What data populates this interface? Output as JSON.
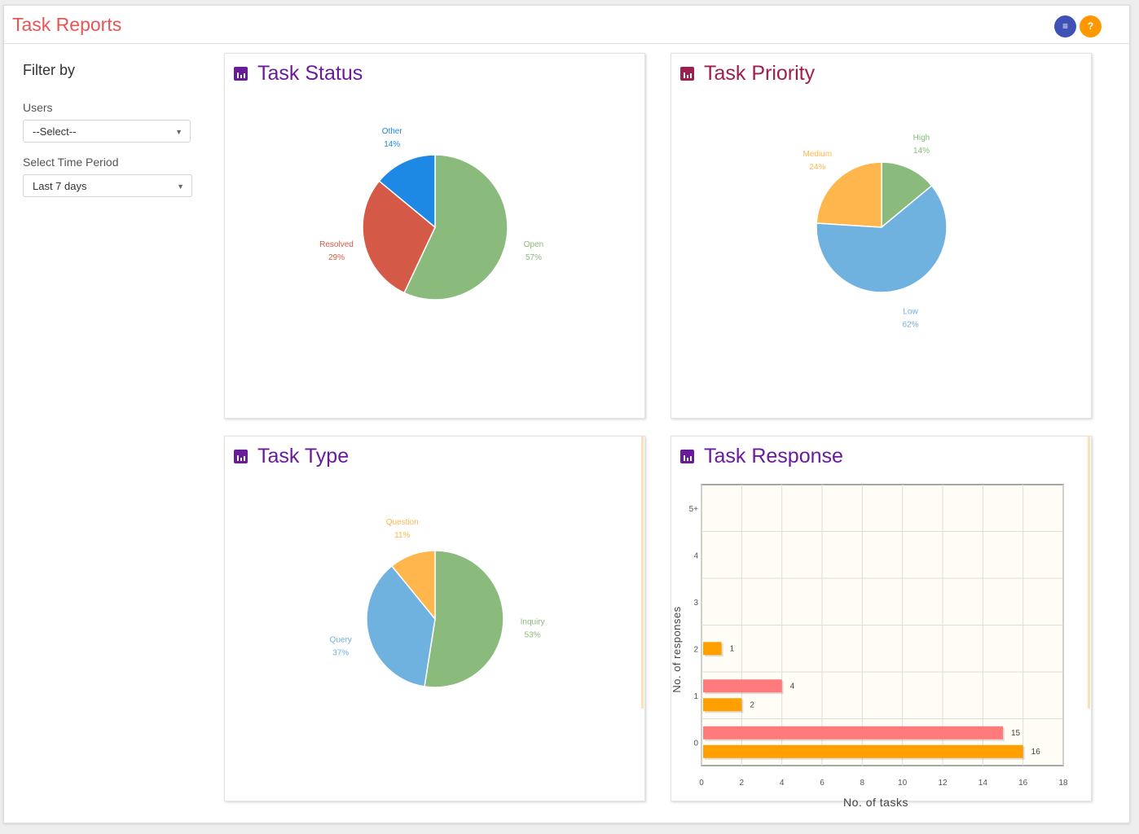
{
  "header": {
    "title": "Task Reports",
    "menu_icon": "≡",
    "help_icon": "?"
  },
  "colors": {
    "title": "#e45757",
    "panel_title_purple": "#6a1b9a",
    "panel_title_red": "#9c1f4f",
    "menu_button": "#3f51b5",
    "help_button": "#ff9800"
  },
  "sidebar": {
    "title": "Filter by",
    "users_label": "Users",
    "users_value": "--Select--",
    "period_label": "Select Time Period",
    "period_value": "Last 7 days"
  },
  "panels": {
    "status": "Task Status",
    "priority": "Task Priority",
    "type": "Task Type",
    "response": "Task Response"
  },
  "chart_data": [
    {
      "type": "pie",
      "title": "Task Status",
      "slices": [
        {
          "label": "Open",
          "percent": 57,
          "display": "57%",
          "color": "#8aba7c"
        },
        {
          "label": "Resolved",
          "percent": 29,
          "display": "29%",
          "color": "#d45a47"
        },
        {
          "label": "Other",
          "percent": 14,
          "display": "14%",
          "color": "#1e88e5"
        }
      ]
    },
    {
      "type": "pie",
      "title": "Task Priority",
      "slices": [
        {
          "label": "High",
          "percent": 14,
          "display": "14%",
          "color": "#8aba7c"
        },
        {
          "label": "Low",
          "percent": 62,
          "display": "62%",
          "color": "#6fb1df"
        },
        {
          "label": "Medium",
          "percent": 24,
          "display": "24%",
          "color": "#ffb74d"
        }
      ]
    },
    {
      "type": "pie",
      "title": "Task Type",
      "slices": [
        {
          "label": "Inquiry",
          "percent": 53,
          "display": "53%",
          "color": "#8aba7c"
        },
        {
          "label": "Query",
          "percent": 37,
          "display": "37%",
          "color": "#6fb1df"
        },
        {
          "label": "Question",
          "percent": 11,
          "display": "11%",
          "color": "#ffb74d"
        }
      ]
    },
    {
      "type": "bar",
      "orientation": "horizontal",
      "title": "Task Response",
      "xlabel": "No. of tasks",
      "ylabel": "No. of responses",
      "xlim": [
        0,
        18
      ],
      "xticks": [
        "0",
        "2",
        "4",
        "6",
        "8",
        "10",
        "12",
        "14",
        "16",
        "18"
      ],
      "categories": [
        "0",
        "1",
        "2",
        "3",
        "4",
        "5+"
      ],
      "series": [
        {
          "color": "#ff7b7b",
          "values": [
            15,
            4,
            null,
            null,
            null,
            null
          ]
        },
        {
          "color": "#ffa000",
          "values": [
            16,
            2,
            1,
            null,
            null,
            null
          ]
        }
      ],
      "grid": true
    }
  ]
}
